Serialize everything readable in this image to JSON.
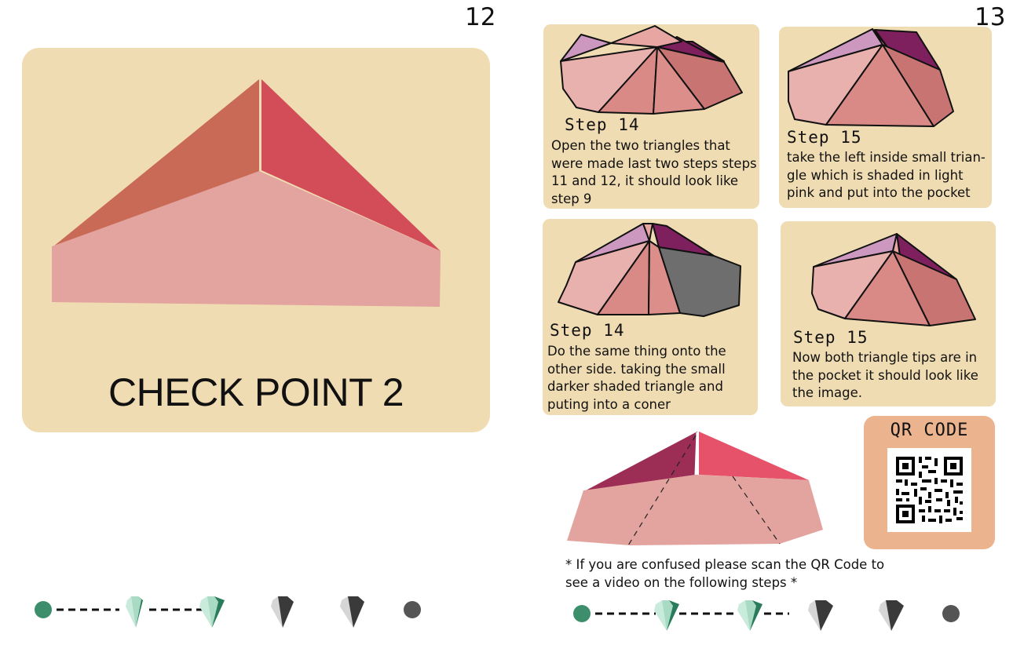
{
  "pages": {
    "left_number": "12",
    "right_number": "13"
  },
  "checkpoint": {
    "title": "CHECK POINT 2"
  },
  "steps": [
    {
      "title": "Step 14",
      "text": "Open the two triangles that were made last two steps steps 11 and 12, it should look like step 9"
    },
    {
      "title": "Step 15",
      "text": "take the left inside small trian-gle which is shaded in light pink and put into the pocket"
    },
    {
      "title": "Step 14",
      "text": "Do the same thing onto the other side. taking the small darker shaded triangle and puting into a coner"
    },
    {
      "title": "Step 15",
      "text": "Now both triangle tips are in the pocket it should look like the image."
    }
  ],
  "qr": {
    "title": "QR CODE"
  },
  "footnote": "* If you are confused please scan the QR Code to see a video on the following steps *",
  "progress": {
    "completed_color": "#3d8f6c",
    "upcoming_color": "#555555"
  },
  "colors": {
    "card_background": "#f0dcb2",
    "qr_card_background": "#ecb48e",
    "paper_light_pink": "#e9b1ad",
    "paper_mid_pink": "#d98a86",
    "paper_purple": "#7e1f5e",
    "paper_lilac": "#cc98c0"
  }
}
